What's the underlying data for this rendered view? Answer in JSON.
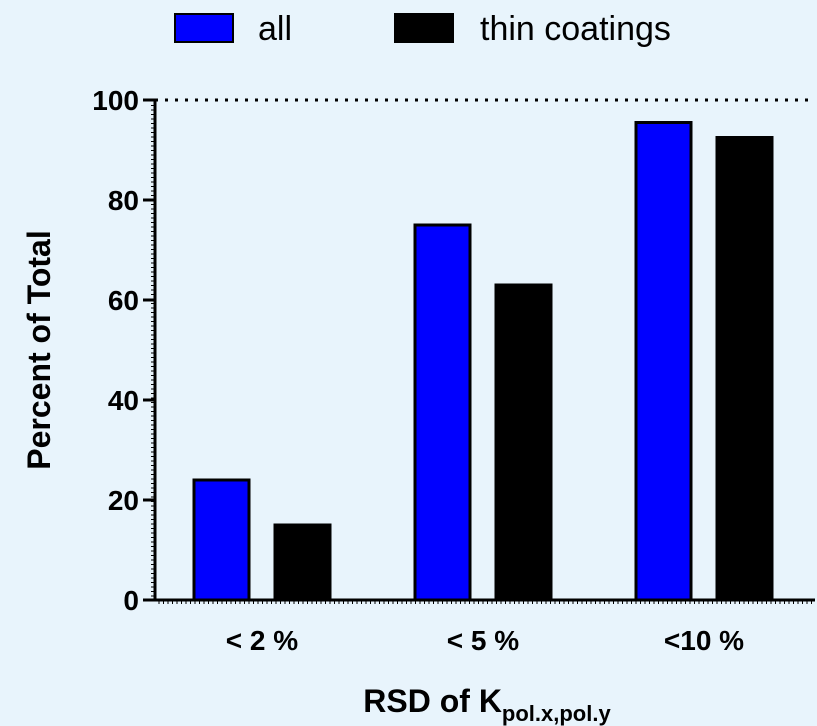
{
  "chart_data": {
    "type": "bar",
    "categories": [
      "< 2 %",
      "< 5 %",
      "<10 %"
    ],
    "series": [
      {
        "name": "all",
        "color": "#0000ff",
        "values": [
          24,
          75,
          95.5
        ]
      },
      {
        "name": "thin coatings",
        "color": "#000000",
        "values": [
          15,
          63,
          92.5
        ]
      }
    ],
    "xlabel": {
      "main": "RSD of K",
      "subscript": "pol.x,pol.y"
    },
    "ylabel": "Percent of Total",
    "ylim": [
      0,
      100
    ],
    "yticks": [
      "0",
      "20",
      "40",
      "60",
      "80",
      "100"
    ],
    "reference_line": {
      "value": 100,
      "style": "dotted"
    },
    "grid": false,
    "legend_position": "top"
  }
}
